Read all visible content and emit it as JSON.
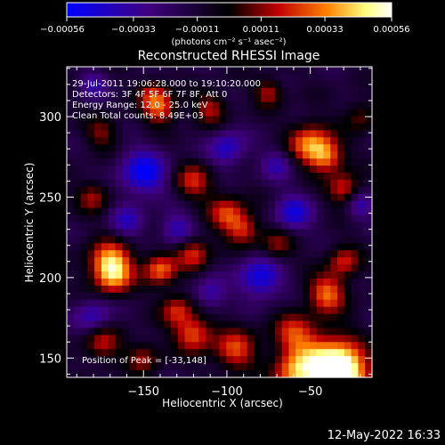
{
  "chart_data": {
    "type": "heatmap",
    "title": "Reconstructed RHESSI Image",
    "xlabel": "Heliocentric X (arcsec)",
    "ylabel": "Heliocentric Y (arcsec)",
    "xlim": [
      -196,
      -13
    ],
    "ylim": [
      138,
      331
    ],
    "x_ticks": [
      -150,
      -100,
      -50
    ],
    "x_tick_labels": [
      "−150",
      "−100",
      "−50"
    ],
    "y_ticks": [
      150,
      200,
      250,
      300
    ],
    "y_tick_labels": [
      "150",
      "200",
      "250",
      "300"
    ],
    "colorbar": {
      "ticks": [
        -0.00056,
        -0.00033,
        -0.00011,
        0.00011,
        0.00033,
        0.00056
      ],
      "tick_labels": [
        "−0.00056",
        "−0.00033",
        "−0.00011",
        "0.00011",
        "0.00033",
        "0.00056"
      ],
      "unit_label": "(photons cm⁻² s⁻¹ asec⁻²)",
      "range": [
        -0.00056,
        0.00056
      ],
      "colormap": [
        "#0000ff",
        "#400080",
        "#000000",
        "#c00000",
        "#ff8000",
        "#ffff80",
        "#ffffff"
      ]
    },
    "annotations": [
      "29-Jul-2011 19:06:28.000 to 19:10:20.000",
      "Detectors: 3F 4F 5F 6F 7F 8F, Att 0",
      "Energy Range: 12.0 - 25.0 keV",
      "Clean     Total counts: 8.49E+03"
    ],
    "peak_label": "Position of Peak = [-33,148]",
    "peak_position": [
      -33,
      148
    ],
    "grid": false,
    "legend": "none",
    "hotspots": [
      {
        "x": -40,
        "y": 145,
        "v": 1.0,
        "s": 14
      },
      {
        "x": -30,
        "y": 140,
        "v": 0.9,
        "s": 10
      },
      {
        "x": -60,
        "y": 165,
        "v": 0.55,
        "s": 9
      },
      {
        "x": -170,
        "y": 210,
        "v": 0.85,
        "s": 9
      },
      {
        "x": -168,
        "y": 200,
        "v": 0.6,
        "s": 8
      },
      {
        "x": -140,
        "y": 205,
        "v": 0.75,
        "s": 7
      },
      {
        "x": -120,
        "y": 215,
        "v": 0.6,
        "s": 7
      },
      {
        "x": -175,
        "y": 160,
        "v": 0.55,
        "s": 8
      },
      {
        "x": -120,
        "y": 165,
        "v": 0.7,
        "s": 8
      },
      {
        "x": -130,
        "y": 180,
        "v": 0.55,
        "s": 7
      },
      {
        "x": -100,
        "y": 240,
        "v": 0.6,
        "s": 8
      },
      {
        "x": -90,
        "y": 230,
        "v": 0.55,
        "s": 7
      },
      {
        "x": -50,
        "y": 283,
        "v": 0.8,
        "s": 9
      },
      {
        "x": -40,
        "y": 275,
        "v": 0.65,
        "s": 7
      },
      {
        "x": -30,
        "y": 255,
        "v": 0.6,
        "s": 7
      },
      {
        "x": -40,
        "y": 190,
        "v": 0.75,
        "s": 8
      },
      {
        "x": -30,
        "y": 210,
        "v": 0.55,
        "s": 7
      },
      {
        "x": -95,
        "y": 155,
        "v": 0.65,
        "s": 9
      },
      {
        "x": -60,
        "y": 140,
        "v": 0.6,
        "s": 9
      },
      {
        "x": -175,
        "y": 290,
        "v": 0.4,
        "s": 7
      },
      {
        "x": -140,
        "y": 305,
        "v": 0.7,
        "s": 7
      },
      {
        "x": -145,
        "y": 315,
        "v": 0.45,
        "s": 6
      },
      {
        "x": -110,
        "y": 305,
        "v": 0.5,
        "s": 7
      },
      {
        "x": -75,
        "y": 315,
        "v": 0.5,
        "s": 6
      },
      {
        "x": -120,
        "y": 260,
        "v": 0.55,
        "s": 8
      },
      {
        "x": -180,
        "y": 250,
        "v": 0.45,
        "s": 7
      },
      {
        "x": -70,
        "y": 220,
        "v": 0.45,
        "s": 7
      },
      {
        "x": -150,
        "y": 150,
        "v": 0.45,
        "s": 7
      },
      {
        "x": -20,
        "y": 300,
        "v": 0.35,
        "s": 7
      }
    ],
    "coldspots": [
      {
        "x": -150,
        "y": 265,
        "v": -0.75,
        "s": 10
      },
      {
        "x": -80,
        "y": 200,
        "v": -0.7,
        "s": 9
      },
      {
        "x": -180,
        "y": 175,
        "v": -0.5,
        "s": 8
      },
      {
        "x": -60,
        "y": 240,
        "v": -0.6,
        "s": 8
      },
      {
        "x": -100,
        "y": 280,
        "v": -0.55,
        "s": 8
      },
      {
        "x": -160,
        "y": 235,
        "v": -0.45,
        "s": 7
      },
      {
        "x": -130,
        "y": 230,
        "v": -0.5,
        "s": 7
      },
      {
        "x": -20,
        "y": 245,
        "v": -0.45,
        "s": 6
      },
      {
        "x": -110,
        "y": 190,
        "v": -0.45,
        "s": 7
      },
      {
        "x": -70,
        "y": 270,
        "v": -0.4,
        "s": 7
      },
      {
        "x": -180,
        "y": 320,
        "v": -0.4,
        "s": 6
      }
    ]
  },
  "footer": {
    "timestamp": "12-May-2022 16:33"
  }
}
